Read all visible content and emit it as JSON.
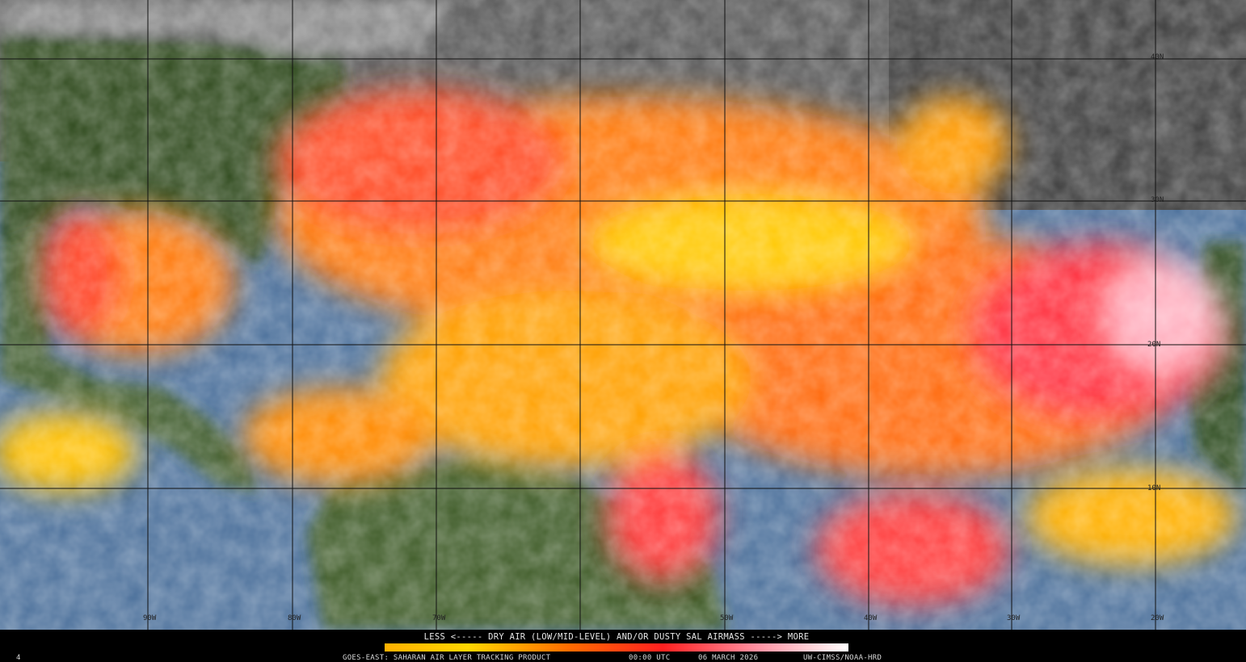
{
  "map": {
    "latitude_labels": [
      "40N",
      "30N",
      "20N",
      "10N"
    ],
    "longitude_labels": [
      "90W",
      "80W",
      "70W",
      "50W",
      "40W",
      "30W",
      "20W"
    ]
  },
  "legend": {
    "caption": "LESS <----- DRY AIR (LOW/MID-LEVEL) AND/OR DUSTY SAL AIRMASS -----> MORE"
  },
  "footer": {
    "frame": "4",
    "product": "GOES-EAST: SAHARAN AIR LAYER TRACKING PRODUCT",
    "time": "00:00 UTC",
    "date": "06 MARCH 2026",
    "credit": "UW-CIMSS/NOAA-HRD"
  }
}
